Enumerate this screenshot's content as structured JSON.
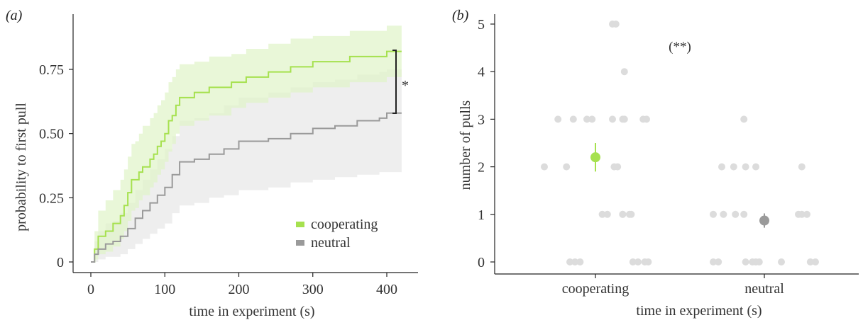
{
  "chart_data": [
    {
      "panel": "(a)",
      "type": "line",
      "step": true,
      "xlabel": "time in experiment (s)",
      "ylabel": "probability to first pull",
      "xlim": [
        -10,
        460
      ],
      "ylim": [
        0,
        0.9
      ],
      "xticks": [
        0,
        100,
        200,
        300,
        400
      ],
      "xtick_labels": [
        "0",
        "100",
        "200",
        "300",
        "400"
      ],
      "yticks": [
        0,
        0.25,
        0.5,
        0.75
      ],
      "ytick_labels": [
        "0",
        "0.25",
        "0.50",
        "0.75"
      ],
      "legend": "bottom-right",
      "significance": "*",
      "series": [
        {
          "name": "cooperating",
          "color": "#a6e14f",
          "band_color": "#dff3c7",
          "x": [
            0,
            5,
            10,
            20,
            30,
            40,
            45,
            50,
            55,
            60,
            65,
            70,
            80,
            85,
            90,
            95,
            100,
            105,
            110,
            115,
            120,
            140,
            160,
            190,
            210,
            240,
            270,
            300,
            350,
            400,
            420
          ],
          "y": [
            0,
            0.05,
            0.1,
            0.12,
            0.15,
            0.18,
            0.22,
            0.27,
            0.32,
            0.32,
            0.35,
            0.37,
            0.4,
            0.42,
            0.45,
            0.47,
            0.5,
            0.55,
            0.57,
            0.61,
            0.64,
            0.66,
            0.68,
            0.7,
            0.72,
            0.74,
            0.76,
            0.78,
            0.8,
            0.82,
            0.82
          ],
          "lower": [
            0,
            0.01,
            0.03,
            0.04,
            0.06,
            0.09,
            0.12,
            0.16,
            0.2,
            0.21,
            0.24,
            0.26,
            0.29,
            0.31,
            0.34,
            0.36,
            0.39,
            0.43,
            0.46,
            0.5,
            0.53,
            0.55,
            0.57,
            0.6,
            0.62,
            0.64,
            0.66,
            0.68,
            0.7,
            0.72,
            0.72
          ],
          "upper": [
            0,
            0.12,
            0.2,
            0.24,
            0.28,
            0.32,
            0.36,
            0.41,
            0.46,
            0.47,
            0.5,
            0.53,
            0.56,
            0.58,
            0.61,
            0.63,
            0.66,
            0.7,
            0.72,
            0.75,
            0.77,
            0.78,
            0.8,
            0.81,
            0.83,
            0.85,
            0.87,
            0.88,
            0.9,
            0.92,
            0.92
          ]
        },
        {
          "name": "neutral",
          "color": "#9a9a9a",
          "band_color": "#ececec",
          "x": [
            0,
            5,
            10,
            20,
            30,
            40,
            50,
            60,
            70,
            80,
            90,
            100,
            110,
            120,
            140,
            160,
            180,
            200,
            240,
            270,
            300,
            330,
            360,
            390,
            400,
            420
          ],
          "y": [
            0,
            0.03,
            0.05,
            0.07,
            0.08,
            0.1,
            0.13,
            0.17,
            0.2,
            0.23,
            0.26,
            0.29,
            0.34,
            0.39,
            0.4,
            0.42,
            0.44,
            0.47,
            0.48,
            0.5,
            0.52,
            0.53,
            0.55,
            0.56,
            0.58,
            0.58
          ],
          "lower": [
            0,
            0.0,
            0.01,
            0.02,
            0.02,
            0.03,
            0.05,
            0.07,
            0.09,
            0.11,
            0.13,
            0.15,
            0.19,
            0.22,
            0.23,
            0.25,
            0.26,
            0.28,
            0.29,
            0.31,
            0.32,
            0.33,
            0.34,
            0.35,
            0.35,
            0.35
          ],
          "upper": [
            0,
            0.08,
            0.12,
            0.15,
            0.16,
            0.19,
            0.23,
            0.28,
            0.32,
            0.36,
            0.4,
            0.44,
            0.49,
            0.55,
            0.56,
            0.58,
            0.61,
            0.64,
            0.66,
            0.68,
            0.7,
            0.71,
            0.73,
            0.74,
            0.75,
            0.75
          ]
        }
      ]
    },
    {
      "panel": "(b)",
      "type": "scatter",
      "xlabel": "time in experiment (s)",
      "ylabel": "number of pulls",
      "categories": [
        "cooperating",
        "neutral"
      ],
      "ylim": [
        0,
        5
      ],
      "yticks": [
        0,
        1,
        2,
        3,
        4,
        5
      ],
      "ytick_labels": [
        "0",
        "1",
        "2",
        "3",
        "4",
        "5"
      ],
      "annotation": "(**)",
      "point_color": "#dcdcdc",
      "points": [
        {
          "category": "cooperating",
          "offsets": [
            -0.15,
            -0.12,
            -0.09,
            0.16,
            0.2,
            0.22
          ],
          "ys": [
            0,
            0,
            0,
            1,
            1,
            0
          ]
        },
        {
          "category": "cooperating",
          "offsets": [
            0.04,
            0.07,
            0.16,
            0.21,
            0.25,
            0.29,
            0.31
          ],
          "ys": [
            1,
            1,
            1,
            1,
            0,
            0,
            0
          ]
        },
        {
          "category": "cooperating",
          "offsets": [
            -0.3,
            -0.17,
            0.11,
            0.13
          ],
          "ys": [
            2,
            2,
            2,
            2
          ]
        },
        {
          "category": "cooperating",
          "offsets": [
            -0.22,
            -0.13,
            -0.05,
            -0.02,
            0.1,
            0.16,
            0.17,
            0.28,
            0.3
          ],
          "ys": [
            3,
            3,
            3,
            3,
            3,
            3,
            3,
            3,
            3
          ]
        },
        {
          "category": "cooperating",
          "offsets": [
            0.17
          ],
          "ys": [
            4
          ]
        },
        {
          "category": "cooperating",
          "offsets": [
            0.1,
            0.12
          ],
          "ys": [
            5,
            5
          ]
        },
        {
          "category": "neutral",
          "offsets": [
            -0.3,
            -0.27,
            -0.11,
            -0.07,
            -0.05,
            -0.03,
            0.1,
            0.27,
            0.3
          ],
          "ys": [
            0,
            0,
            0,
            0,
            0,
            0,
            0,
            0,
            0
          ]
        },
        {
          "category": "neutral",
          "offsets": [
            -0.3,
            -0.24,
            -0.17,
            -0.12,
            0.2,
            0.22,
            0.25
          ],
          "ys": [
            1,
            1,
            1,
            1,
            1,
            1,
            1
          ]
        },
        {
          "category": "neutral",
          "offsets": [
            -0.25,
            -0.18,
            -0.11,
            -0.05,
            0.22
          ],
          "ys": [
            2,
            2,
            2,
            2,
            2
          ]
        },
        {
          "category": "neutral",
          "offsets": [
            -0.12
          ],
          "ys": [
            3
          ]
        }
      ],
      "means": [
        {
          "category": "cooperating",
          "mean": 2.2,
          "lower": 1.9,
          "upper": 2.5,
          "color": "#a6e14f"
        },
        {
          "category": "neutral",
          "mean": 0.87,
          "lower": 0.72,
          "upper": 1.02,
          "color": "#9a9a9a"
        }
      ]
    }
  ]
}
